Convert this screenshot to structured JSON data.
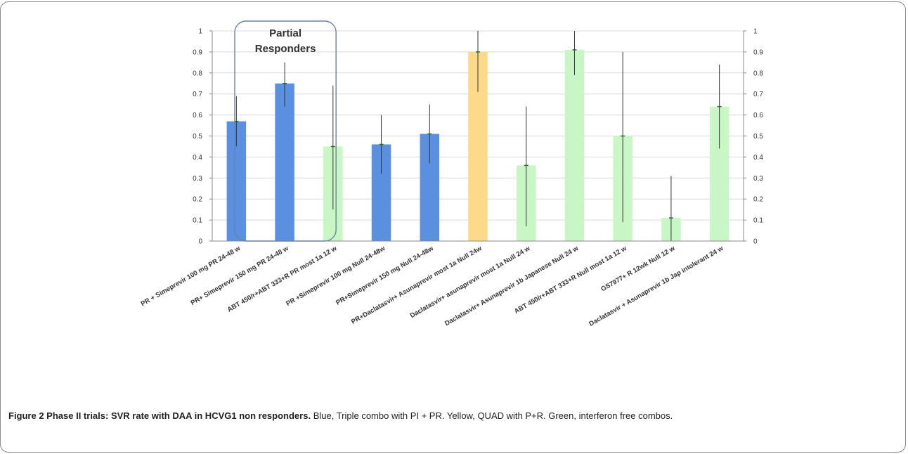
{
  "caption": {
    "title": "Figure 2 Phase II trials: SVR rate with DAA in HCVG1 non responders.",
    "text": "Blue, Triple combo with PI + PR. Yellow, QUAD with P+R. Green, interferon free combos."
  },
  "colors": {
    "blue": "#5b8fe0",
    "yellow": "#fdd98a",
    "green": "#c8f7c5",
    "error_bar": "#333333",
    "grid": "#d9d9d9",
    "annotation_box": "#6b7fa8"
  },
  "chart_data": {
    "type": "bar",
    "title": "",
    "xlabel": "",
    "ylabel": "",
    "ylim": [
      0,
      1
    ],
    "yticks": [
      "0",
      "0.1",
      "0.2",
      "0.3",
      "0.4",
      "0.5",
      "0.6",
      "0.7",
      "0.8",
      "0.9",
      "1"
    ],
    "secondary_yaxis": true,
    "grid": true,
    "annotation": {
      "line1": "Partial",
      "line2": "Responders",
      "covers_categories": [
        0,
        1,
        2
      ]
    },
    "categories": [
      "PR + Simeprevir 100 mg PR 24-48 w",
      "PR+ Simeprevir 150 mg PR 24-48 w",
      "ABT 450/r+ABT 333+R PR most 1a 12 w",
      "PR +Simeprevir 100 mg Null 24-48w",
      "PR+Simeprevir 150 mg Null 24-48w",
      "PR+Daclatasvir+ Asunaprevir most 1a Null 24w",
      "Daclatasvir+ asunaprevir most 1a Null 24 w",
      "Daclatasvir+ Asunaprevir 1b Japanese Null 24 w",
      "ABT 450/r+ABT 333+R Null most 1a 12 w",
      "GS7977+ R 12wk Null 12 w",
      "Daclatasvir + Asunaprevir 1b Jap intolerant 24 w"
    ],
    "values": [
      0.57,
      0.75,
      0.45,
      0.46,
      0.51,
      0.9,
      0.36,
      0.91,
      0.5,
      0.11,
      0.64
    ],
    "error_low": [
      0.45,
      0.64,
      0.15,
      0.32,
      0.37,
      0.71,
      0.07,
      0.79,
      0.09,
      0.0,
      0.44
    ],
    "error_high": [
      0.69,
      0.85,
      0.74,
      0.6,
      0.65,
      1.0,
      0.64,
      1.0,
      0.9,
      0.31,
      0.84
    ],
    "bar_groups": [
      "blue",
      "blue",
      "green",
      "blue",
      "blue",
      "yellow",
      "green",
      "green",
      "green",
      "green",
      "green"
    ]
  }
}
